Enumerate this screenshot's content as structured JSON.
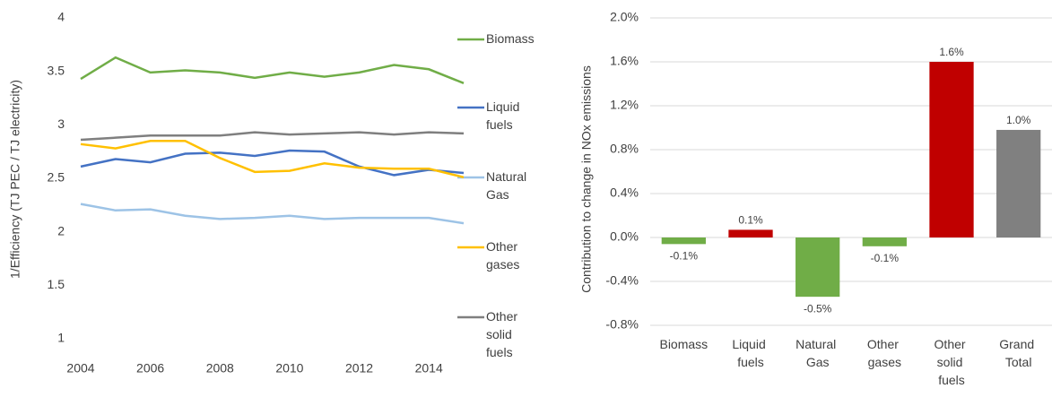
{
  "chart_data": [
    {
      "type": "line",
      "y_label": "1/Efficiency (TJ PEC / TJ electricity)",
      "x": [
        2004,
        2005,
        2006,
        2007,
        2008,
        2009,
        2010,
        2011,
        2012,
        2013,
        2014,
        2015
      ],
      "xlim": [
        2004,
        2015
      ],
      "xticks": [
        2004,
        2006,
        2008,
        2010,
        2012,
        2014
      ],
      "ylim": [
        1,
        4
      ],
      "yticks": [
        1,
        1.5,
        2,
        2.5,
        3,
        3.5,
        4
      ],
      "grid": false,
      "legend": "right",
      "series": [
        {
          "name": "Biomass",
          "color": "#70ad47",
          "values": [
            3.43,
            3.63,
            3.49,
            3.51,
            3.49,
            3.44,
            3.49,
            3.45,
            3.49,
            3.56,
            3.52,
            3.39
          ]
        },
        {
          "name": "Liquid fuels",
          "color": "#4472c4",
          "values": [
            2.61,
            2.68,
            2.65,
            2.73,
            2.74,
            2.71,
            2.76,
            2.75,
            2.61,
            2.53,
            2.58,
            2.55
          ]
        },
        {
          "name": "Natural Gas",
          "color": "#9dc3e6",
          "values": [
            2.26,
            2.2,
            2.21,
            2.15,
            2.12,
            2.13,
            2.15,
            2.12,
            2.13,
            2.13,
            2.13,
            2.08
          ]
        },
        {
          "name": "Other gases",
          "color": "#ffc000",
          "values": [
            2.82,
            2.78,
            2.85,
            2.85,
            2.69,
            2.56,
            2.57,
            2.64,
            2.6,
            2.59,
            2.59,
            2.51
          ]
        },
        {
          "name": "Other solid fuels",
          "color": "#7f7f7f",
          "values": [
            2.86,
            2.88,
            2.9,
            2.9,
            2.9,
            2.93,
            2.91,
            2.92,
            2.93,
            2.91,
            2.93,
            2.92
          ]
        }
      ]
    },
    {
      "type": "bar",
      "y_label": "Contribution to change in NOx emissions",
      "categories": [
        "Biomass",
        "Liquid fuels",
        "Natural Gas",
        "Other gases",
        "Other solid fuels",
        "Grand Total"
      ],
      "values": [
        -0.06,
        0.07,
        -0.54,
        -0.08,
        1.6,
        0.98
      ],
      "value_labels": [
        "-0.1%",
        "0.1%",
        "-0.5%",
        "-0.1%",
        "1.6%",
        "1.0%"
      ],
      "colors": [
        "#70ad47",
        "#c00000",
        "#70ad47",
        "#70ad47",
        "#c00000",
        "#808080"
      ],
      "ylim": [
        -0.8,
        2.0
      ],
      "yticks": [
        {
          "value": -0.8,
          "label": "-0.8%"
        },
        {
          "value": -0.4,
          "label": "-0.4%"
        },
        {
          "value": 0,
          "label": "0.0%"
        },
        {
          "value": 0.4,
          "label": "0.4%"
        },
        {
          "value": 0.8,
          "label": "0.8%"
        },
        {
          "value": 1.2,
          "label": "1.2%"
        },
        {
          "value": 1.6,
          "label": "1.6%"
        },
        {
          "value": 2.0,
          "label": "2.0%"
        }
      ],
      "grid": true
    }
  ]
}
